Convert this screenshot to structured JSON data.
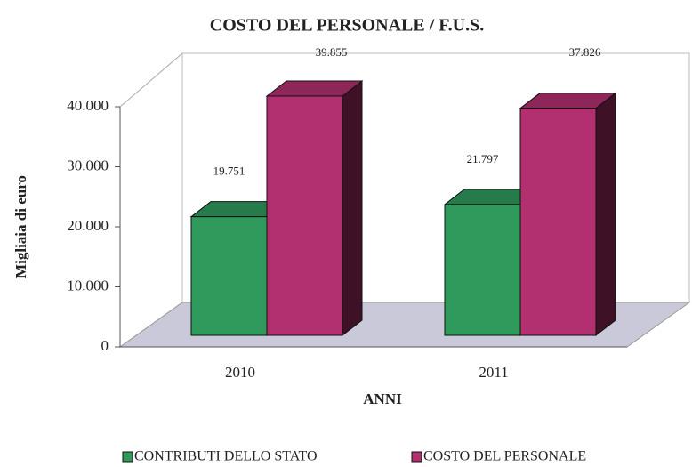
{
  "chart_data": {
    "type": "bar3d",
    "title": "COSTO DEL PERSONALE / F.U.S.",
    "xlabel": "ANNI",
    "ylabel": "Migliaia di euro",
    "categories": [
      "2010",
      "2011"
    ],
    "series": [
      {
        "name": "CONTRIBUTI DELLO STATO",
        "color": "#2f9a5c",
        "values": [
          19751,
          21797
        ],
        "value_labels": [
          "19.751",
          "21.797"
        ]
      },
      {
        "name": "COSTO DEL PERSONALE",
        "color": "#b2306f",
        "values": [
          39855,
          37826
        ],
        "value_labels": [
          "39.855",
          "37.826"
        ]
      }
    ],
    "ylim": [
      0,
      40000
    ],
    "yticks": [
      0,
      {
        "value": 10000,
        "label": "10.000"
      },
      {
        "value": 20000,
        "label": "20.000"
      },
      {
        "value": 30000,
        "label": "30.000"
      },
      {
        "value": 40000,
        "label": "40.000"
      }
    ],
    "legend": "bottom"
  }
}
